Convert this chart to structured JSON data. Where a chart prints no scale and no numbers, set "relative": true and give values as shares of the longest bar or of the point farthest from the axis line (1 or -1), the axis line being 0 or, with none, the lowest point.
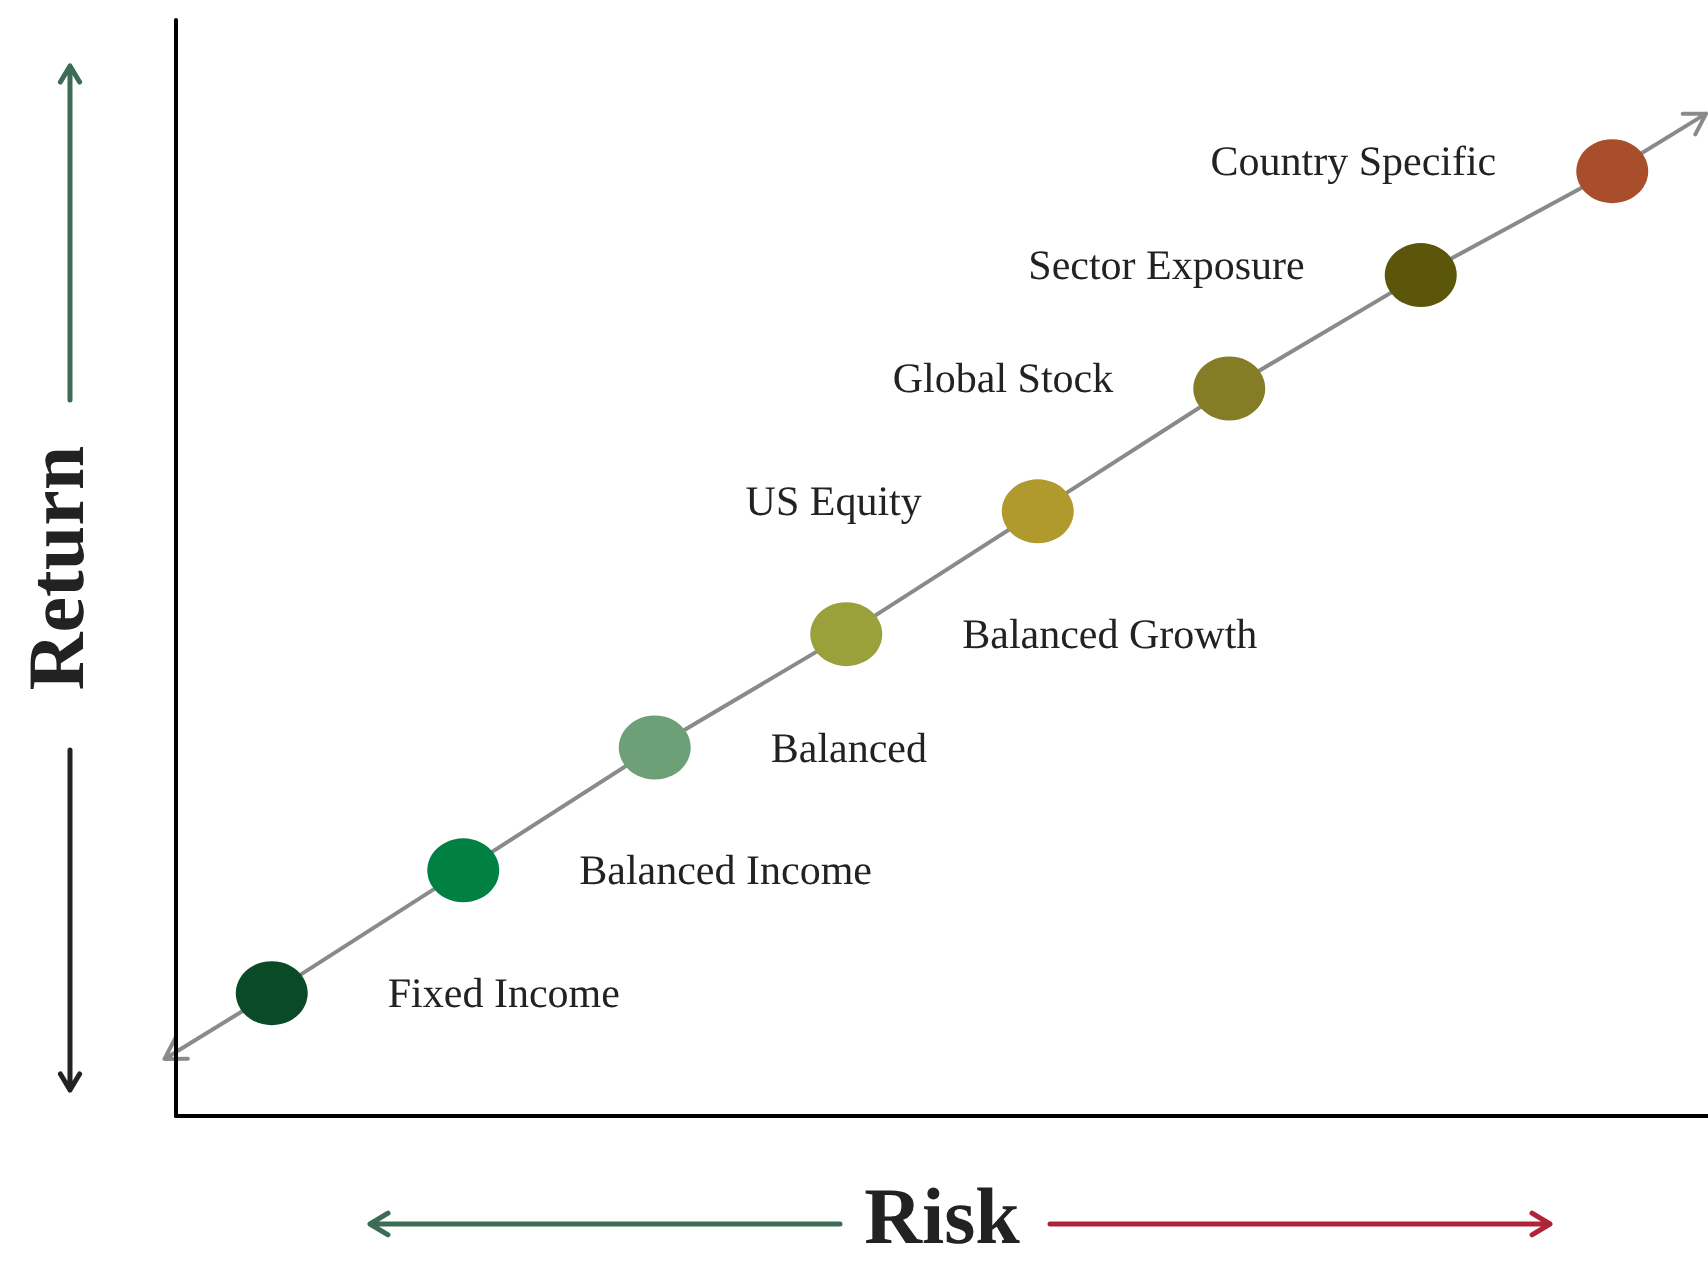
{
  "chart_data": {
    "type": "line",
    "xlabel": "Risk",
    "ylabel": "Return",
    "relative": true,
    "marker": "circle",
    "categories": [
      null,
      null,
      null,
      null,
      null,
      null,
      null,
      null
    ],
    "series": [
      {
        "color": "#8a8a8a",
        "values": [
          0.13,
          0.26,
          0.39,
          0.51,
          0.64,
          0.77,
          0.89,
          1
        ],
        "colors": [
          "#0b4a26",
          "#008043",
          "#6ea078",
          "#9aa03a",
          "#b09a2e",
          "#857d25",
          "#5b560a",
          "#a84e2b"
        ]
      }
    ],
    "annotations": [
      "Fixed Income",
      "Balanced Income",
      "Balanced",
      "Balanced Growth",
      "US Equity",
      "Global Stock",
      "Sector Exposure",
      "Country Specific"
    ]
  }
}
